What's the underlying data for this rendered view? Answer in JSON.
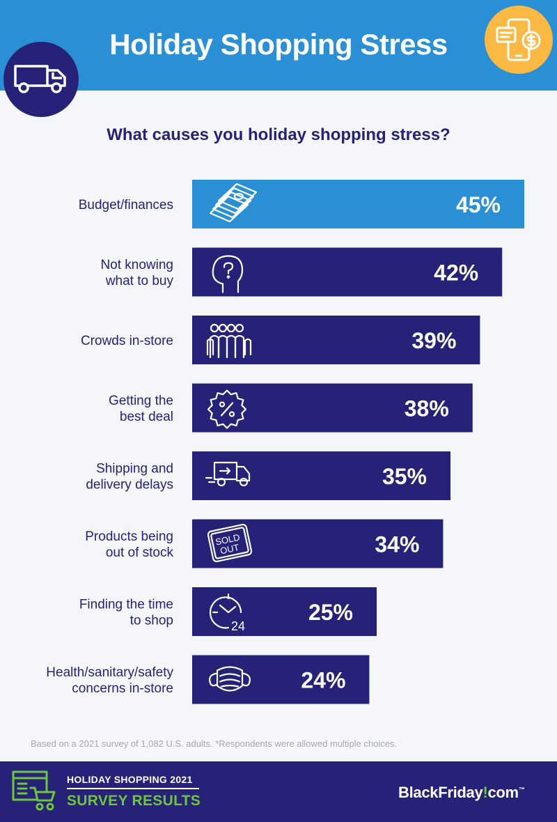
{
  "header": {
    "title": "Holiday Shopping Stress",
    "left_icon": "delivery-truck-icon",
    "right_icon": "phone-chat-dollar-icon",
    "colors": {
      "header_bg": "#2a8fd4",
      "truck_badge": "#252278",
      "phone_badge": "#fbb842"
    }
  },
  "question": "What causes you holiday shopping stress?",
  "chart_data": {
    "type": "bar",
    "orientation": "horizontal",
    "title": "What causes you holiday shopping stress?",
    "value_suffix": "%",
    "xlim": [
      0,
      45
    ],
    "grid": false,
    "legend": "none",
    "colors": {
      "top_bar": "#2a8fd4",
      "bar": "#252278",
      "label": "#252278",
      "value_label": "#ffffff"
    },
    "bars": [
      {
        "label": [
          "Budget/finances"
        ],
        "value": 45,
        "display": "45%",
        "icon": "money-stack-icon",
        "highlight": true
      },
      {
        "label": [
          "Not knowing",
          "what to buy"
        ],
        "value": 42,
        "display": "42%",
        "icon": "head-question-icon"
      },
      {
        "label": [
          "Crowds in-store"
        ],
        "value": 39,
        "display": "39%",
        "icon": "crowd-icon"
      },
      {
        "label": [
          "Getting the",
          "best deal"
        ],
        "value": 38,
        "display": "38%",
        "icon": "percent-badge-icon"
      },
      {
        "label": [
          "Shipping and",
          "delivery delays"
        ],
        "value": 35,
        "display": "35%",
        "icon": "delivery-truck-icon"
      },
      {
        "label": [
          "Products being",
          "out of stock"
        ],
        "value": 34,
        "display": "34%",
        "icon": "sold-out-sign-icon",
        "icon_text": [
          "SOLD",
          "OUT"
        ]
      },
      {
        "label": [
          "Finding the time",
          "to shop"
        ],
        "value": 25,
        "display": "25%",
        "icon": "clock-24-icon",
        "icon_text": [
          "24"
        ]
      },
      {
        "label": [
          "Health/sanitary/safety",
          "concerns in-store"
        ],
        "value": 24,
        "display": "24%",
        "icon": "face-mask-icon"
      }
    ]
  },
  "footnote": "Based on a 2021 survey of 1,082 U.S. adults. *Respondents were allowed multiple choices.",
  "footer": {
    "line1": "HOLIDAY SHOPPING 2021",
    "line2": "SURVEY RESULTS",
    "brand_main": "BlackFriday",
    "brand_mark": "!",
    "brand_tail": "com",
    "brand_tm": "™",
    "icon": "web-cart-icon",
    "colors": {
      "bg": "#252278",
      "accent": "#6fc63b"
    }
  }
}
